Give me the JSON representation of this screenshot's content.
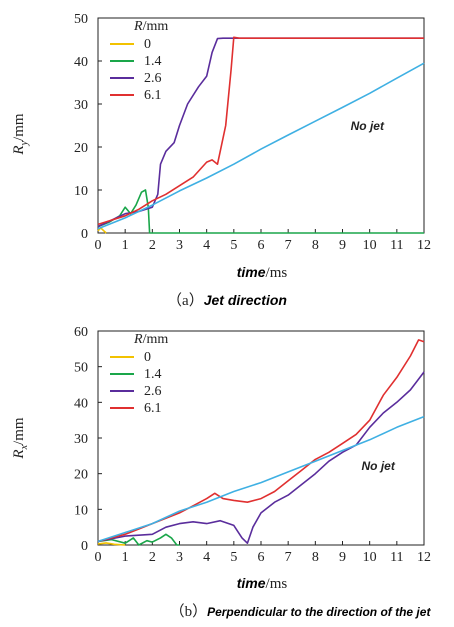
{
  "chart_data": [
    {
      "type": "line",
      "caption_prefix": "（a）",
      "caption": "Jet direction",
      "xlabel_var": "time",
      "xlabel_unit": "/ms",
      "ylabel_var": "R",
      "ylabel_sub": "y",
      "ylabel_unit": "/mm",
      "xlim": [
        0,
        12
      ],
      "ylim": [
        0,
        50
      ],
      "xticks": [
        0,
        1,
        2,
        3,
        4,
        5,
        6,
        7,
        8,
        9,
        10,
        11,
        12
      ],
      "yticks": [
        0,
        10,
        20,
        30,
        40,
        50
      ],
      "legend": {
        "title_var": "R",
        "title_unit": "/mm",
        "position": "top-left"
      },
      "annotation": {
        "text": "No jet",
        "x": 9.3,
        "y": 24
      },
      "series": [
        {
          "name": "0",
          "color": "#f2c200",
          "points": [
            [
              0,
              0.5
            ],
            [
              0.1,
              1.2
            ],
            [
              0.2,
              0.6
            ],
            [
              0.3,
              0
            ]
          ]
        },
        {
          "name": "1.4",
          "color": "#1aa64a",
          "points": [
            [
              0,
              1.5
            ],
            [
              0.4,
              2.5
            ],
            [
              0.8,
              4
            ],
            [
              1.0,
              6
            ],
            [
              1.2,
              4.5
            ],
            [
              1.4,
              6.5
            ],
            [
              1.6,
              9.5
            ],
            [
              1.75,
              10
            ],
            [
              1.85,
              6
            ],
            [
              1.9,
              0
            ],
            [
              12,
              0
            ]
          ]
        },
        {
          "name": "2.6",
          "color": "#5a2d9c",
          "points": [
            [
              0,
              1.5
            ],
            [
              0.5,
              3
            ],
            [
              1,
              4.5
            ],
            [
              1.5,
              5
            ],
            [
              2,
              6
            ],
            [
              2.2,
              9
            ],
            [
              2.3,
              16
            ],
            [
              2.5,
              19
            ],
            [
              2.8,
              21
            ],
            [
              3,
              25
            ],
            [
              3.3,
              30
            ],
            [
              3.7,
              34
            ],
            [
              4,
              36.5
            ],
            [
              4.2,
              42
            ],
            [
              4.4,
              45.2
            ],
            [
              4.6,
              45.3
            ],
            [
              12,
              45.3
            ]
          ]
        },
        {
          "name": "6.1",
          "color": "#e03030",
          "points": [
            [
              0,
              2
            ],
            [
              0.5,
              3
            ],
            [
              1,
              4
            ],
            [
              1.5,
              5.5
            ],
            [
              2,
              7.5
            ],
            [
              2.5,
              9
            ],
            [
              3,
              11
            ],
            [
              3.5,
              13
            ],
            [
              4,
              16.5
            ],
            [
              4.2,
              17
            ],
            [
              4.4,
              16
            ],
            [
              4.7,
              25
            ],
            [
              4.9,
              38
            ],
            [
              5.0,
              45.5
            ],
            [
              5.2,
              45.3
            ],
            [
              12,
              45.3
            ]
          ]
        },
        {
          "name": "No jet",
          "color": "#3fb0e3",
          "points": [
            [
              0,
              1
            ],
            [
              1,
              3.5
            ],
            [
              2,
              6.5
            ],
            [
              3,
              9.8
            ],
            [
              4,
              12.8
            ],
            [
              5,
              16
            ],
            [
              6,
              19.5
            ],
            [
              7,
              22.8
            ],
            [
              8,
              26
            ],
            [
              9,
              29.2
            ],
            [
              10,
              32.5
            ],
            [
              11,
              36
            ],
            [
              12,
              39.5
            ]
          ]
        }
      ]
    },
    {
      "type": "line",
      "caption_prefix": "（b）",
      "caption": "Perpendicular to the direction of the jet",
      "xlabel_var": "time",
      "xlabel_unit": "/ms",
      "ylabel_var": "R",
      "ylabel_sub": "x",
      "ylabel_unit": "/mm",
      "xlim": [
        0,
        12
      ],
      "ylim": [
        0,
        60
      ],
      "xticks": [
        0,
        1,
        2,
        3,
        4,
        5,
        6,
        7,
        8,
        9,
        10,
        11,
        12
      ],
      "yticks": [
        0,
        10,
        20,
        30,
        40,
        50,
        60
      ],
      "legend": {
        "title_var": "R",
        "title_unit": "/mm",
        "position": "top-left"
      },
      "annotation": {
        "text": "No jet",
        "x": 9.7,
        "y": 21
      },
      "series": [
        {
          "name": "0",
          "color": "#f2c200",
          "points": [
            [
              0,
              0.3
            ],
            [
              0.3,
              0.6
            ],
            [
              0.6,
              0.2
            ],
            [
              1,
              0
            ]
          ]
        },
        {
          "name": "1.4",
          "color": "#1aa64a",
          "points": [
            [
              0,
              1
            ],
            [
              0.5,
              1.5
            ],
            [
              1,
              0.5
            ],
            [
              1.3,
              2
            ],
            [
              1.5,
              0
            ],
            [
              1.8,
              1.2
            ],
            [
              2,
              0.8
            ],
            [
              2.3,
              2
            ],
            [
              2.5,
              3
            ],
            [
              2.7,
              2
            ],
            [
              2.9,
              0
            ],
            [
              3,
              0
            ]
          ]
        },
        {
          "name": "2.6",
          "color": "#5a2d9c",
          "points": [
            [
              0,
              1
            ],
            [
              1,
              2.5
            ],
            [
              2,
              3
            ],
            [
              2.5,
              5
            ],
            [
              3,
              6
            ],
            [
              3.5,
              6.5
            ],
            [
              4,
              6
            ],
            [
              4.5,
              6.8
            ],
            [
              5,
              5.5
            ],
            [
              5.3,
              2
            ],
            [
              5.5,
              0.5
            ],
            [
              5.7,
              5
            ],
            [
              6,
              9
            ],
            [
              6.5,
              12
            ],
            [
              7,
              14
            ],
            [
              7.5,
              17
            ],
            [
              8,
              20
            ],
            [
              8.5,
              23.5
            ],
            [
              9,
              26
            ],
            [
              9.5,
              28
            ],
            [
              10,
              33
            ],
            [
              10.5,
              37
            ],
            [
              11,
              40
            ],
            [
              11.5,
              43.5
            ],
            [
              12,
              48.5
            ]
          ]
        },
        {
          "name": "6.1",
          "color": "#e03030",
          "points": [
            [
              0,
              1
            ],
            [
              1,
              3
            ],
            [
              1.5,
              4.5
            ],
            [
              2,
              6
            ],
            [
              3,
              9
            ],
            [
              3.5,
              11
            ],
            [
              4,
              13
            ],
            [
              4.3,
              14.5
            ],
            [
              4.6,
              13
            ],
            [
              5,
              12.5
            ],
            [
              5.5,
              12
            ],
            [
              6,
              13
            ],
            [
              6.5,
              15
            ],
            [
              7,
              18
            ],
            [
              7.5,
              21
            ],
            [
              8,
              24
            ],
            [
              8.5,
              26
            ],
            [
              9,
              28.5
            ],
            [
              9.5,
              31
            ],
            [
              10,
              35
            ],
            [
              10.5,
              42
            ],
            [
              11,
              47
            ],
            [
              11.5,
              53
            ],
            [
              11.8,
              57.5
            ],
            [
              12,
              57
            ]
          ]
        },
        {
          "name": "No jet",
          "color": "#3fb0e3",
          "points": [
            [
              0,
              1
            ],
            [
              1,
              3.5
            ],
            [
              2,
              6
            ],
            [
              3,
              9.5
            ],
            [
              4,
              12
            ],
            [
              5,
              15
            ],
            [
              6,
              17.5
            ],
            [
              7,
              20.5
            ],
            [
              8,
              23.5
            ],
            [
              9,
              26.5
            ],
            [
              10,
              29.5
            ],
            [
              11,
              33
            ],
            [
              12,
              36
            ]
          ]
        }
      ]
    }
  ]
}
